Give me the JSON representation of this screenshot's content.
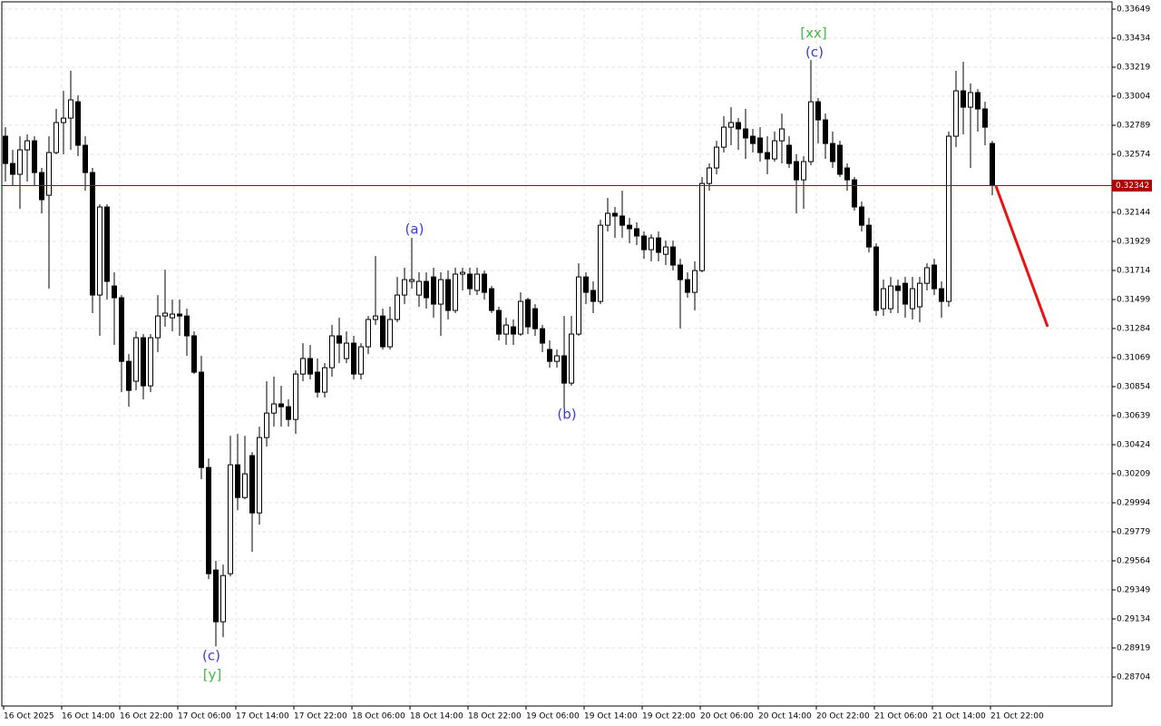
{
  "chart_data": {
    "type": "candlestick",
    "categories": [
      "16 Oct 2025",
      null,
      null,
      null,
      null,
      null,
      null,
      null,
      "16 Oct 14:00",
      null,
      null,
      null,
      null,
      null,
      null,
      null,
      "16 Oct 22:00",
      null,
      null,
      null,
      null,
      null,
      null,
      null,
      "17 Oct 06:00",
      null,
      null,
      null,
      null,
      null,
      null,
      null,
      "17 Oct 14:00",
      null,
      null,
      null,
      null,
      null,
      null,
      null,
      "17 Oct 22:00",
      null,
      null,
      null,
      null,
      null,
      null,
      null,
      "18 Oct 06:00",
      null,
      null,
      null,
      null,
      null,
      null,
      null,
      "18 Oct 14:00",
      null,
      null,
      null,
      null,
      null,
      null,
      null,
      "18 Oct 22:00",
      null,
      null,
      null,
      null,
      null,
      null,
      null,
      "19 Oct 06:00",
      null,
      null,
      null,
      null,
      null,
      null,
      null,
      "19 Oct 14:00",
      null,
      null,
      null,
      null,
      null,
      null,
      null,
      "19 Oct 22:00",
      null,
      null,
      null,
      null,
      null,
      null,
      null,
      "20 Oct 06:00",
      null,
      null,
      null,
      null,
      null,
      null,
      null,
      "20 Oct 14:00",
      null,
      null,
      null,
      null,
      null,
      null,
      null,
      "20 Oct 22:00",
      null,
      null,
      null,
      null,
      null,
      null,
      null,
      "21 Oct 06:00",
      null,
      null,
      null,
      null,
      null,
      null,
      null,
      "21 Oct 14:00",
      null,
      null,
      null,
      null,
      null,
      null,
      null,
      "21 Oct 22:00"
    ],
    "open": [
      0.32708,
      0.32506,
      0.32426,
      0.32607,
      0.32674,
      0.32439,
      0.32271,
      0.32587,
      0.32809,
      0.32842,
      0.32963,
      0.32641,
      0.32439,
      0.31532,
      0.32184,
      0.31599,
      0.31512,
      0.31041,
      0.30894,
      0.31216,
      0.3086,
      0.31216,
      0.31377,
      0.31364,
      0.31391,
      0.31377,
      0.3123,
      0.30961,
      0.30255,
      0.29496,
      0.29113,
      0.29469,
      0.30275,
      0.30033,
      0.30343,
      0.29919,
      0.30477,
      0.30658,
      0.30726,
      0.30705,
      0.30611,
      0.30947,
      0.31062,
      0.30961,
      0.30813,
      0.30994,
      0.3123,
      0.31062,
      0.31176,
      0.30947,
      0.31149,
      0.31351,
      0.31377,
      0.31149,
      0.31351,
      0.31532,
      0.31633,
      0.31532,
      0.31633,
      0.31666,
      0.31465,
      0.31646,
      0.31418,
      0.31687,
      0.31687,
      0.31566,
      0.31687,
      0.31579,
      0.31418,
      0.31243,
      0.31297,
      0.31243,
      0.31498,
      0.31431,
      0.31283,
      0.31129,
      0.31041,
      0.31082,
      0.3088,
      0.31243,
      0.31666,
      0.31566,
      0.31485,
      0.32049,
      0.32137,
      0.32117,
      0.32049,
      0.32023,
      0.31969,
      0.31868,
      0.31955,
      0.31834,
      0.31888,
      0.31754,
      0.31646,
      0.31552,
      0.31713,
      0.32358,
      0.32473,
      0.32627,
      0.32775,
      0.32809,
      0.32762,
      0.32708,
      0.32695,
      0.32587,
      0.3254,
      0.32674,
      0.32641,
      0.3252,
      0.32385,
      0.3252,
      0.32963,
      0.32829,
      0.32654,
      0.32641,
      0.32473,
      0.32385,
      0.32184,
      0.32049,
      0.31888,
      0.31431,
      0.31431,
      0.31599,
      0.31619,
      0.31431,
      0.31445,
      0.31619,
      0.31754,
      0.31579,
      0.31485,
      0.32708,
      0.33044,
      0.32923,
      0.33031,
      0.3291,
      0.32654
    ],
    "high": [
      0.32775,
      0.32607,
      0.32708,
      0.32721,
      0.32708,
      0.32473,
      0.32708,
      0.3291,
      0.33044,
      0.33192,
      0.3301,
      0.32708,
      0.32473,
      0.32204,
      0.32204,
      0.317,
      0.31532,
      0.31095,
      0.31263,
      0.31243,
      0.31243,
      0.31532,
      0.3172,
      0.31498,
      0.31498,
      0.31431,
      0.31263,
      0.31082,
      0.30322,
      0.29563,
      0.29536,
      0.3049,
      0.30504,
      0.3049,
      0.30369,
      0.30558,
      0.30894,
      0.30927,
      0.3086,
      0.30759,
      0.30974,
      0.31176,
      0.31162,
      0.31062,
      0.31028,
      0.3131,
      0.31364,
      0.31263,
      0.3123,
      0.31176,
      0.31377,
      0.31821,
      0.31431,
      0.31445,
      0.31666,
      0.31734,
      0.31955,
      0.317,
      0.317,
      0.31734,
      0.317,
      0.31713,
      0.31734,
      0.31734,
      0.31734,
      0.31734,
      0.31713,
      0.31599,
      0.31445,
      0.31364,
      0.31351,
      0.31552,
      0.31512,
      0.31465,
      0.3131,
      0.31196,
      0.31129,
      0.31377,
      0.31377,
      0.31767,
      0.317,
      0.31633,
      0.3209,
      0.32251,
      0.32184,
      0.32305,
      0.32103,
      0.3207,
      0.32002,
      0.31982,
      0.32002,
      0.31935,
      0.31935,
      0.31801,
      0.317,
      0.31781,
      0.32406,
      0.32506,
      0.32674,
      0.32856,
      0.32923,
      0.32842,
      0.3291,
      0.32762,
      0.32775,
      0.32708,
      0.32742,
      0.32876,
      0.32708,
      0.32574,
      0.3256,
      0.33272,
      0.3299,
      0.32876,
      0.32742,
      0.32674,
      0.32506,
      0.32406,
      0.32224,
      0.32103,
      0.31915,
      0.31646,
      0.31666,
      0.31646,
      0.31666,
      0.31666,
      0.31666,
      0.31767,
      0.31801,
      0.31633,
      0.32742,
      0.33192,
      0.33259,
      0.33098,
      0.33057,
      0.32963,
      0.32674
    ],
    "low": [
      0.32372,
      0.32338,
      0.3217,
      0.32372,
      0.32338,
      0.32137,
      0.31579,
      0.32574,
      0.32574,
      0.32607,
      0.3256,
      0.32305,
      0.31398,
      0.3123,
      0.31498,
      0.31162,
      0.30813,
      0.30705,
      0.30826,
      0.30759,
      0.30813,
      0.31109,
      0.31297,
      0.31263,
      0.3123,
      0.31082,
      0.30947,
      0.30168,
      0.29429,
      0.28931,
      0.28999,
      0.29449,
      0.29939,
      0.3002,
      0.2963,
      0.29832,
      0.3041,
      0.30558,
      0.30558,
      0.30558,
      0.30504,
      0.30894,
      0.30907,
      0.30773,
      0.30773,
      0.30927,
      0.31028,
      0.31028,
      0.30907,
      0.30907,
      0.31095,
      0.3131,
      0.31129,
      0.31129,
      0.3133,
      0.31465,
      0.31579,
      0.31445,
      0.31431,
      0.31364,
      0.3123,
      0.31351,
      0.31398,
      0.31566,
      0.31532,
      0.31532,
      0.31498,
      0.31398,
      0.31196,
      0.31162,
      0.31162,
      0.3123,
      0.31243,
      0.3123,
      0.31109,
      0.30994,
      0.30994,
      0.30692,
      0.3086,
      0.3123,
      0.31465,
      0.31398,
      0.31465,
      0.32002,
      0.31955,
      0.31955,
      0.31915,
      0.31902,
      0.31801,
      0.31781,
      0.31781,
      0.31754,
      0.31713,
      0.31283,
      0.31512,
      0.31418,
      0.317,
      0.32305,
      0.32426,
      0.32587,
      0.32641,
      0.32607,
      0.3254,
      0.32587,
      0.3252,
      0.32426,
      0.3252,
      0.32506,
      0.32473,
      0.32137,
      0.3217,
      0.32493,
      0.32654,
      0.3254,
      0.32473,
      0.32406,
      0.32305,
      0.32157,
      0.32002,
      0.31848,
      0.31377,
      0.31377,
      0.31398,
      0.31398,
      0.31364,
      0.31351,
      0.3133,
      0.31566,
      0.31532,
      0.31364,
      0.31445,
      0.32627,
      0.32721,
      0.32473,
      0.32742,
      0.32641,
      0.32271
    ],
    "close": [
      0.32506,
      0.32426,
      0.32607,
      0.32674,
      0.32439,
      0.32238,
      0.32587,
      0.32809,
      0.32842,
      0.32977,
      0.32641,
      0.32439,
      0.31532,
      0.32184,
      0.31633,
      0.31512,
      0.31041,
      0.30826,
      0.31216,
      0.3086,
      0.31216,
      0.31377,
      0.31398,
      0.31391,
      0.31377,
      0.3123,
      0.30961,
      0.30255,
      0.29469,
      0.29113,
      0.29455,
      0.30275,
      0.30033,
      0.30208,
      0.29919,
      0.30477,
      0.30658,
      0.30726,
      0.30705,
      0.30611,
      0.30947,
      0.31062,
      0.30947,
      0.30813,
      0.30994,
      0.3123,
      0.31176,
      0.31176,
      0.30947,
      0.31149,
      0.31351,
      0.31377,
      0.31149,
      0.31351,
      0.31532,
      0.31646,
      0.31646,
      0.31633,
      0.31512,
      0.31465,
      0.31646,
      0.31418,
      0.31687,
      0.317,
      0.31579,
      0.31687,
      0.31552,
      0.31418,
      0.31243,
      0.3131,
      0.31243,
      0.31485,
      0.31297,
      0.31283,
      0.31176,
      0.31041,
      0.31082,
      0.3088,
      0.31243,
      0.31666,
      0.31552,
      0.31485,
      0.32049,
      0.32137,
      0.32117,
      0.32049,
      0.32023,
      0.31969,
      0.31868,
      0.31955,
      0.31848,
      0.31888,
      0.31754,
      0.31646,
      0.31552,
      0.31713,
      0.32358,
      0.32473,
      0.32627,
      0.32775,
      0.32809,
      0.32762,
      0.32695,
      0.32654,
      0.32587,
      0.3254,
      0.32674,
      0.32762,
      0.32506,
      0.32385,
      0.3252,
      0.32963,
      0.32829,
      0.32654,
      0.3252,
      0.32426,
      0.32385,
      0.32184,
      0.32049,
      0.31888,
      0.31418,
      0.31579,
      0.31599,
      0.31566,
      0.31465,
      0.31579,
      0.31619,
      0.31734,
      0.31579,
      0.31485,
      0.32708,
      0.33044,
      0.32923,
      0.33031,
      0.3291,
      0.32775,
      0.32342
    ],
    "up_color": "#ffffff",
    "down_color": "#000000",
    "ylim": [
      0.28489,
      0.33703
    ],
    "yticks": [
      0.33649,
      0.33434,
      0.33219,
      0.33004,
      0.32789,
      0.32574,
      0.32144,
      0.31929,
      0.31714,
      0.31499,
      0.31284,
      0.31069,
      0.30854,
      0.30639,
      0.30424,
      0.30209,
      0.29994,
      0.29779,
      0.29564,
      0.29349,
      0.29134,
      0.28919,
      0.28704
    ],
    "grid": true,
    "current_price": 0.32342,
    "annotations": [
      "(c)",
      "[y]",
      "(a)",
      "(b)",
      "[xx]",
      "(c)"
    ]
  }
}
